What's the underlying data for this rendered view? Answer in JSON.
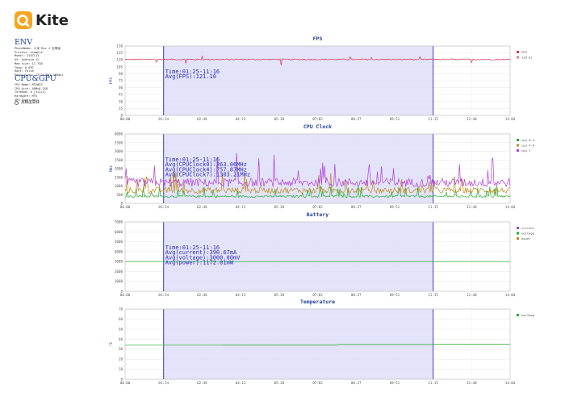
{
  "app": {
    "name": "Kite",
    "brand_color": "#f5a623"
  },
  "env": {
    "title": "ENV",
    "lines": [
      "PhoneName: 小米 Mix 4 至尊版",
      "Process: example",
      "Model: 2107113",
      "OS: Android 12",
      "Mem size: 11.7GB",
      "Temp: 0.0℃",
      "Root: False",
      "Resolution: 1272x2801 560dpi"
    ]
  },
  "cpu_gpu": {
    "title": "CPU&GPU",
    "lines": [
      "CPU Name: MT6893",
      "CPU Arch: ARMv8.2X8",
      "CoreNum: 8 [4+3+1]",
      "Hardware: MTK",
      "GPU Type: mali"
    ]
  },
  "hq_label": "高精度采样",
  "x_ticks": [
    "00:00",
    "01:24",
    "02:48",
    "04:13",
    "05:38",
    "07:02",
    "08:27",
    "09:51",
    "11:15",
    "12:40",
    "14:04"
  ],
  "selection": {
    "start": "01:24",
    "end": "11:15",
    "fill": "#dcdcf7",
    "line": "#3b3bd1"
  },
  "chart_data": [
    {
      "type": "line",
      "title": "FPS",
      "ylabel": "FPS",
      "ylim": [
        0,
        150
      ],
      "yticks": [
        "0",
        "15",
        "30",
        "45",
        "60",
        "75",
        "90",
        "105",
        "120",
        "135",
        "150"
      ],
      "legend": [
        {
          "name": "FPS",
          "color": "#e0304e"
        },
        {
          "name": "120 Hz",
          "color": "#e87c90"
        }
      ],
      "series": [
        {
          "name": "FPS",
          "color": "#e0304e",
          "base": 121,
          "noise": 1.2,
          "spike": 8,
          "spikeRate": 0.02
        }
      ],
      "annotations": [
        "Time:01:25-11:16",
        "Avg(FPS):121.10"
      ]
    },
    {
      "type": "line",
      "title": "CPU Clock",
      "ylabel": "MHz",
      "ylim": [
        0,
        4000
      ],
      "yticks": [
        "0",
        "500",
        "1000",
        "1500",
        "2000",
        "2500",
        "3000",
        "3500",
        "4000"
      ],
      "legend": [
        {
          "name": "cpu 0-3",
          "color": "#1fae2a"
        },
        {
          "name": "cpu 4-6",
          "color": "#c08a1e"
        },
        {
          "name": "cpu 7",
          "color": "#b23fd6"
        }
      ],
      "series": [
        {
          "name": "cpu 0-3",
          "color": "#1fae2a",
          "base": 400,
          "noise": 60,
          "spike": 400,
          "spikeRate": 0.07
        },
        {
          "name": "cpu 4-6",
          "color": "#c08a1e",
          "base": 750,
          "noise": 180,
          "spike": 700,
          "spikeRate": 0.06
        },
        {
          "name": "cpu 7",
          "color": "#b23fd6",
          "base": 1200,
          "noise": 250,
          "spike": 1000,
          "spikeRate": 0.07
        }
      ],
      "annotations": [
        "Time:01:25-11:16",
        "Avg(CPUClock0):363.06MHz",
        "Avg(CPUClock4):757.87MHz",
        "Avg(CPUClock7):1303.21MHz"
      ]
    },
    {
      "type": "line",
      "title": "Battery",
      "ylabel": "",
      "ylim": [
        0,
        7000
      ],
      "yticks": [
        "0",
        "1000",
        "2000",
        "3000",
        "4000",
        "5000",
        "6000",
        "7000"
      ],
      "legend": [
        {
          "name": "current",
          "color": "#b23fd6"
        },
        {
          "name": "voltage",
          "color": "#1fae2a"
        },
        {
          "name": "power",
          "color": "#c08a1e"
        }
      ],
      "series": [
        {
          "name": "voltage",
          "color": "#1fae2a",
          "base": 3000,
          "noise": 0,
          "spike": 0,
          "spikeRate": 0
        }
      ],
      "annotations": [
        "Time:01:25-11:16",
        "Avg(current):390.67mA",
        "Avg(voltage):3000.00mV",
        "Avg(power):1172.01mW"
      ]
    },
    {
      "type": "line",
      "title": "Temperature",
      "ylabel": "°C",
      "ylim": [
        0,
        70
      ],
      "yticks": [
        "0",
        "10",
        "20",
        "30",
        "40",
        "50",
        "60",
        "70"
      ],
      "legend": [
        {
          "name": "batTemp",
          "color": "#1fae2a"
        }
      ],
      "series": [
        {
          "name": "batTemp",
          "color": "#1fae2a",
          "base": 34,
          "noise": 0,
          "spike": 0,
          "spikeRate": 0,
          "rise": 1
        }
      ],
      "annotations": []
    }
  ]
}
